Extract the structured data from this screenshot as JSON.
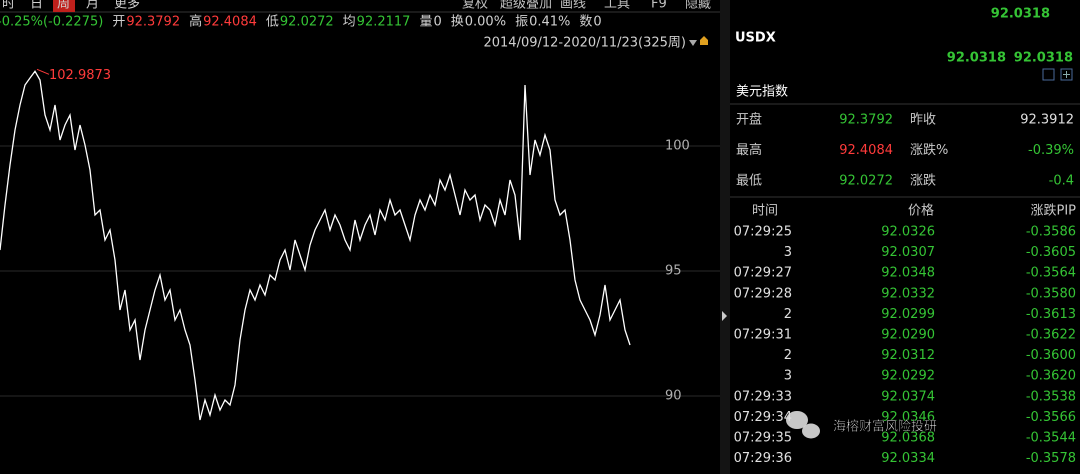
{
  "toolbar": {
    "left": [
      "时",
      "日",
      "周",
      "月",
      "更多"
    ],
    "active": "周",
    "right": [
      "复权",
      "超级叠加",
      "画线",
      "工具",
      "F9",
      "隐藏"
    ]
  },
  "quote_bar": [
    {
      "label": null,
      "value": "-0.25%(-0.2275)",
      "color": "#35c435"
    },
    {
      "label": "开",
      "value": "92.3792",
      "color": "#ff3b3b"
    },
    {
      "label": "高",
      "value": "92.4084",
      "color": "#ff3b3b"
    },
    {
      "label": "低",
      "value": "92.0272",
      "color": "#35c435"
    },
    {
      "label": "均",
      "value": "92.2117",
      "color": "#35c435"
    },
    {
      "label": "量",
      "value": "0",
      "color": "#d0d0d0"
    },
    {
      "label": "换",
      "value": "0.00%",
      "color": "#d0d0d0"
    },
    {
      "label": "振",
      "value": "0.41%",
      "color": "#d0d0d0"
    },
    {
      "label": "数",
      "value": "0",
      "color": "#d0d0d0"
    }
  ],
  "range_label": "2014/09/12-2020/11/23(325周)",
  "chart_data": {
    "type": "line",
    "color": "#ffffff",
    "grid": true,
    "ylim": [
      86.88,
      104.24
    ],
    "yticks": [
      90,
      95,
      100
    ],
    "values": [
      95.84,
      97.64,
      99.24,
      100.64,
      101.64,
      102.44,
      102.72,
      102.9873,
      102.64,
      101.24,
      100.64,
      101.64,
      100.24,
      100.84,
      101.24,
      99.84,
      100.84,
      100.04,
      99.04,
      97.24,
      97.44,
      96.24,
      96.64,
      95.44,
      93.44,
      94.24,
      92.64,
      93.04,
      91.44,
      92.64,
      93.44,
      94.24,
      94.84,
      93.84,
      94.24,
      93.04,
      93.44,
      92.64,
      92.04,
      90.64,
      89.04,
      89.84,
      89.24,
      90.04,
      89.44,
      89.84,
      89.64,
      90.44,
      92.24,
      93.44,
      94.24,
      93.84,
      94.44,
      94.04,
      94.84,
      94.64,
      95.44,
      95.84,
      95.04,
      96.24,
      95.64,
      95.04,
      96.04,
      96.64,
      97.04,
      97.44,
      96.64,
      97.24,
      96.84,
      96.24,
      95.84,
      97.04,
      96.24,
      96.84,
      97.24,
      96.44,
      97.44,
      97.04,
      97.84,
      97.24,
      97.44,
      96.84,
      96.24,
      97.24,
      97.84,
      97.44,
      98.04,
      97.64,
      98.64,
      98.24,
      98.84,
      98.04,
      97.24,
      98.24,
      97.84,
      98.04,
      97.04,
      97.64,
      97.44,
      96.84,
      97.84,
      97.24,
      98.64,
      98.04,
      96.24,
      102.44,
      98.84,
      100.24,
      99.64,
      100.44,
      99.84,
      97.84,
      97.24,
      97.44,
      96.24,
      94.64,
      93.84,
      93.44,
      93.04,
      92.44,
      93.24,
      94.44,
      93.04,
      93.44,
      93.84,
      92.64,
      92.04
    ],
    "annotation_color": "#ff3b3b"
  },
  "panel": {
    "symbol": "USDX",
    "last": "92.0318",
    "bid": "92.0318",
    "ask": "92.0318",
    "name": "美元指数",
    "quote_table": [
      [
        {
          "text": "开盘",
          "color": "#c8c8c8"
        },
        {
          "text": "92.3792",
          "color": "#35c435"
        },
        {
          "text": "昨收",
          "color": "#c8c8c8"
        },
        {
          "text": "92.3912",
          "color": "#e0e0e0"
        }
      ],
      [
        {
          "text": "最高",
          "color": "#c8c8c8"
        },
        {
          "text": "92.4084",
          "color": "#ff3b3b"
        },
        {
          "text": "涨跌%",
          "color": "#c8c8c8"
        },
        {
          "text": "-0.39%",
          "color": "#35c435"
        }
      ],
      [
        {
          "text": "最低",
          "color": "#c8c8c8"
        },
        {
          "text": "92.0272",
          "color": "#35c435"
        },
        {
          "text": "涨跌",
          "color": "#c8c8c8"
        },
        {
          "text": "-0.4",
          "color": "#35c435"
        }
      ]
    ],
    "ticks_header": [
      "时间",
      "价格",
      "涨跌PIP"
    ],
    "ticks": [
      [
        "07:29:25",
        "92.0326",
        "-0.3586"
      ],
      [
        "3",
        "92.0307",
        "-0.3605"
      ],
      [
        "07:29:27",
        "92.0348",
        "-0.3564"
      ],
      [
        "07:29:28",
        "92.0332",
        "-0.3580"
      ],
      [
        "2",
        "92.0299",
        "-0.3613"
      ],
      [
        "07:29:31",
        "92.0290",
        "-0.3622"
      ],
      [
        "2",
        "92.0312",
        "-0.3600"
      ],
      [
        "3",
        "92.0292",
        "-0.3620"
      ],
      [
        "07:29:33",
        "92.0374",
        "-0.3538"
      ],
      [
        "07:29:34",
        "92.0346",
        "-0.3566"
      ],
      [
        "07:29:35",
        "92.0368",
        "-0.3544"
      ],
      [
        "07:29:36",
        "92.0334",
        "-0.3578"
      ]
    ]
  },
  "watermark": "海榕财富风险投研"
}
